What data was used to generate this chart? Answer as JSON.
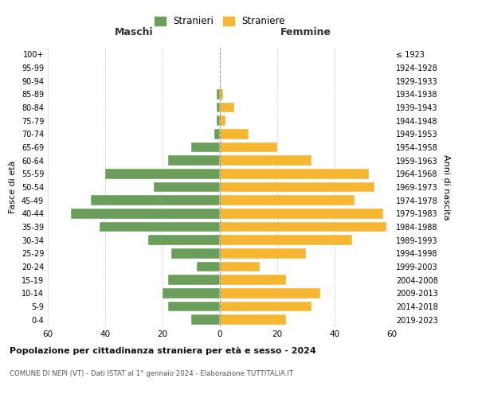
{
  "age_groups": [
    "0-4",
    "5-9",
    "10-14",
    "15-19",
    "20-24",
    "25-29",
    "30-34",
    "35-39",
    "40-44",
    "45-49",
    "50-54",
    "55-59",
    "60-64",
    "65-69",
    "70-74",
    "75-79",
    "80-84",
    "85-89",
    "90-94",
    "95-99",
    "100+"
  ],
  "birth_years": [
    "2019-2023",
    "2014-2018",
    "2009-2013",
    "2004-2008",
    "1999-2003",
    "1994-1998",
    "1989-1993",
    "1984-1988",
    "1979-1983",
    "1974-1978",
    "1969-1973",
    "1964-1968",
    "1959-1963",
    "1954-1958",
    "1949-1953",
    "1944-1948",
    "1939-1943",
    "1934-1938",
    "1929-1933",
    "1924-1928",
    "≤ 1923"
  ],
  "males": [
    10,
    18,
    20,
    18,
    8,
    17,
    25,
    42,
    52,
    45,
    23,
    40,
    18,
    10,
    2,
    1,
    1,
    1,
    0,
    0,
    0
  ],
  "females": [
    23,
    32,
    35,
    23,
    14,
    30,
    46,
    58,
    57,
    47,
    54,
    52,
    32,
    20,
    10,
    2,
    5,
    1,
    0,
    0,
    0
  ],
  "male_color": "#6a9e5a",
  "female_color": "#f5b731",
  "bg_color": "#ffffff",
  "grid_color": "#cccccc",
  "title": "Popolazione per cittadinanza straniera per età e sesso - 2024",
  "subtitle": "COMUNE DI NEPI (VT) - Dati ISTAT al 1° gennaio 2024 - Elaborazione TUTTITALIA.IT",
  "legend_male": "Stranieri",
  "legend_female": "Straniere",
  "xlabel_left": "Maschi",
  "xlabel_right": "Femmine",
  "ylabel_left": "Fasce di età",
  "ylabel_right": "Anni di nascita",
  "xlim": 60
}
